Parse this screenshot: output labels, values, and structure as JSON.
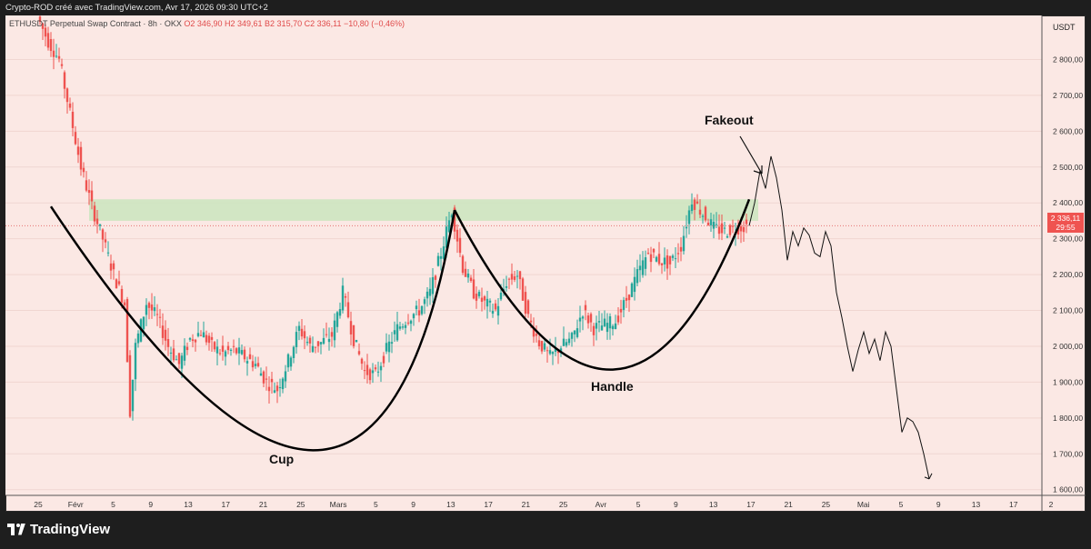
{
  "header": {
    "credit": "Crypto-ROD créé avec TradingView.com, Avr 17, 2026 09:30 UTC+2"
  },
  "symbol": {
    "name": "ETHUSDT Perpetual Swap Contract · 8h · OKX",
    "open": "O2 346,90",
    "high": "H2 349,61",
    "low": "B2 315,70",
    "close": "C2 336,11",
    "change": "−10,80 (−0,46%)"
  },
  "currency": "USDT",
  "current_price": {
    "value": "2 336,11",
    "countdown": "29:55"
  },
  "annotations": {
    "fakeout": "Fakeout",
    "cup": "Cup",
    "handle": "Handle"
  },
  "branding": {
    "logo_text": "TradingView"
  },
  "colors": {
    "up": "#26a69a",
    "down": "#ef5350",
    "zone": "#cde6c0",
    "background": "#fbe8e4"
  },
  "chart_data": {
    "type": "candlestick",
    "timeframe": "8h",
    "ylim": [
      1540,
      2900
    ],
    "y_ticks": [
      "2 800,00",
      "2 700,00",
      "2 600,00",
      "2 500,00",
      "2 400,00",
      "2 300,00",
      "2 200,00",
      "2 100,00",
      "2 000,00",
      "1 900,00",
      "1 800,00",
      "1 700,00",
      "1 600,00"
    ],
    "y_tick_values": [
      2800,
      2700,
      2600,
      2500,
      2400,
      2300,
      2200,
      2100,
      2000,
      1900,
      1800,
      1700,
      1600
    ],
    "x_ticks": [
      "25",
      "Févr",
      "5",
      "9",
      "13",
      "17",
      "21",
      "25",
      "Mars",
      "5",
      "9",
      "13",
      "17",
      "21",
      "25",
      "Avr",
      "5",
      "9",
      "13",
      "17",
      "21",
      "25",
      "Mai",
      "5",
      "9",
      "13",
      "17",
      "2"
    ],
    "resistance_zone": {
      "low": 2350,
      "high": 2410
    },
    "current_price_line": 2336.11,
    "price_path": [
      [
        0,
        2920
      ],
      [
        2,
        2850
      ],
      [
        4,
        2800
      ],
      [
        6,
        2650
      ],
      [
        8,
        2500
      ],
      [
        10,
        2390
      ],
      [
        12,
        2300
      ],
      [
        14,
        2200
      ],
      [
        16,
        2120
      ],
      [
        17,
        1820
      ],
      [
        18,
        2000
      ],
      [
        20,
        2120
      ],
      [
        22,
        2080
      ],
      [
        24,
        2000
      ],
      [
        26,
        1950
      ],
      [
        28,
        2020
      ],
      [
        30,
        2040
      ],
      [
        32,
        2000
      ],
      [
        34,
        1980
      ],
      [
        36,
        1990
      ],
      [
        38,
        1970
      ],
      [
        40,
        1950
      ],
      [
        42,
        1900
      ],
      [
        44,
        1880
      ],
      [
        46,
        1960
      ],
      [
        48,
        2050
      ],
      [
        50,
        2000
      ],
      [
        52,
        2010
      ],
      [
        54,
        2030
      ],
      [
        56,
        2150
      ],
      [
        58,
        2020
      ],
      [
        60,
        1930
      ],
      [
        62,
        1920
      ],
      [
        64,
        1990
      ],
      [
        66,
        2050
      ],
      [
        68,
        2080
      ],
      [
        70,
        2100
      ],
      [
        72,
        2150
      ],
      [
        74,
        2260
      ],
      [
        76,
        2380
      ],
      [
        78,
        2220
      ],
      [
        80,
        2150
      ],
      [
        82,
        2120
      ],
      [
        84,
        2100
      ],
      [
        86,
        2180
      ],
      [
        88,
        2200
      ],
      [
        90,
        2080
      ],
      [
        92,
        2010
      ],
      [
        94,
        1970
      ],
      [
        96,
        2000
      ],
      [
        98,
        2020
      ],
      [
        100,
        2100
      ],
      [
        102,
        2050
      ],
      [
        104,
        2060
      ],
      [
        106,
        2070
      ],
      [
        108,
        2130
      ],
      [
        110,
        2200
      ],
      [
        112,
        2260
      ],
      [
        114,
        2240
      ],
      [
        116,
        2230
      ],
      [
        118,
        2280
      ],
      [
        120,
        2410
      ],
      [
        122,
        2370
      ],
      [
        124,
        2330
      ],
      [
        126,
        2320
      ],
      [
        128,
        2330
      ],
      [
        130,
        2336.11
      ]
    ],
    "projection_path": [
      [
        130,
        2336
      ],
      [
        131,
        2400
      ],
      [
        132,
        2490
      ],
      [
        133,
        2440
      ],
      [
        134,
        2530
      ],
      [
        135,
        2470
      ],
      [
        136,
        2380
      ],
      [
        137,
        2240
      ],
      [
        138,
        2320
      ],
      [
        139,
        2280
      ],
      [
        140,
        2330
      ],
      [
        141,
        2310
      ],
      [
        142,
        2260
      ],
      [
        143,
        2250
      ],
      [
        144,
        2320
      ],
      [
        145,
        2280
      ],
      [
        146,
        2150
      ],
      [
        147,
        2080
      ],
      [
        148,
        2000
      ],
      [
        149,
        1930
      ],
      [
        150,
        1990
      ],
      [
        151,
        2040
      ],
      [
        152,
        1980
      ],
      [
        153,
        2020
      ],
      [
        154,
        1960
      ],
      [
        155,
        2040
      ],
      [
        156,
        2000
      ],
      [
        157,
        1880
      ],
      [
        158,
        1760
      ],
      [
        159,
        1800
      ],
      [
        160,
        1790
      ],
      [
        161,
        1760
      ],
      [
        162,
        1700
      ],
      [
        163,
        1630
      ]
    ],
    "pattern": {
      "cup": {
        "left": [
          2,
          2390
        ],
        "bottom": [
          50,
          1710
        ],
        "right": [
          76,
          2380
        ]
      },
      "handle": {
        "left": [
          76,
          2380
        ],
        "bottom": [
          105,
          1935
        ],
        "right": [
          130,
          2410
        ]
      }
    }
  }
}
